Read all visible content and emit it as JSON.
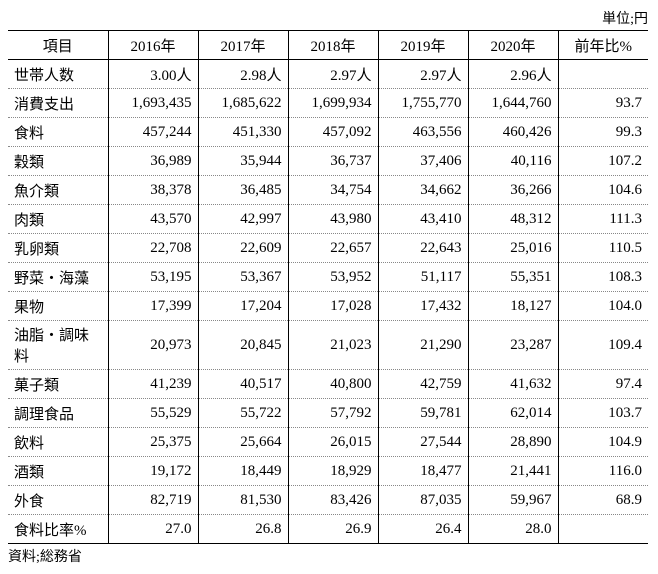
{
  "unit_caption": "単位;円",
  "source": "資料;総務省",
  "columns": [
    "項目",
    "2016年",
    "2017年",
    "2018年",
    "2019年",
    "2020年",
    "前年比%"
  ],
  "rows": [
    {
      "label": "世帯人数",
      "v": [
        "3.00人",
        "2.98人",
        "2.97人",
        "2.97人",
        "2.96人",
        ""
      ]
    },
    {
      "label": "消費支出",
      "v": [
        "1,693,435",
        "1,685,622",
        "1,699,934",
        "1,755,770",
        "1,644,760",
        "93.7"
      ]
    },
    {
      "label": "食料",
      "v": [
        "457,244",
        "451,330",
        "457,092",
        "463,556",
        "460,426",
        "99.3"
      ]
    },
    {
      "label": "穀類",
      "v": [
        "36,989",
        "35,944",
        "36,737",
        "37,406",
        "40,116",
        "107.2"
      ]
    },
    {
      "label": "魚介類",
      "v": [
        "38,378",
        "36,485",
        "34,754",
        "34,662",
        "36,266",
        "104.6"
      ]
    },
    {
      "label": "肉類",
      "v": [
        "43,570",
        "42,997",
        "43,980",
        "43,410",
        "48,312",
        "111.3"
      ]
    },
    {
      "label": "乳卵類",
      "v": [
        "22,708",
        "22,609",
        "22,657",
        "22,643",
        "25,016",
        "110.5"
      ]
    },
    {
      "label": "野菜・海藻",
      "v": [
        "53,195",
        "53,367",
        "53,952",
        "51,117",
        "55,351",
        "108.3"
      ]
    },
    {
      "label": "果物",
      "v": [
        "17,399",
        "17,204",
        "17,028",
        "17,432",
        "18,127",
        "104.0"
      ]
    },
    {
      "label": "油脂・調味料",
      "v": [
        "20,973",
        "20,845",
        "21,023",
        "21,290",
        "23,287",
        "109.4"
      ]
    },
    {
      "label": "菓子類",
      "v": [
        "41,239",
        "40,517",
        "40,800",
        "42,759",
        "41,632",
        "97.4"
      ]
    },
    {
      "label": "調理食品",
      "v": [
        "55,529",
        "55,722",
        "57,792",
        "59,781",
        "62,014",
        "103.7"
      ]
    },
    {
      "label": "飲料",
      "v": [
        "25,375",
        "25,664",
        "26,015",
        "27,544",
        "28,890",
        "104.9"
      ]
    },
    {
      "label": "酒類",
      "v": [
        "19,172",
        "18,449",
        "18,929",
        "18,477",
        "21,441",
        "116.0"
      ]
    },
    {
      "label": "外食",
      "v": [
        "82,719",
        "81,530",
        "83,426",
        "87,035",
        "59,967",
        "68.9"
      ]
    },
    {
      "label": "食料比率%",
      "v": [
        "27.0",
        "26.8",
        "26.9",
        "26.4",
        "28.0",
        ""
      ]
    }
  ]
}
